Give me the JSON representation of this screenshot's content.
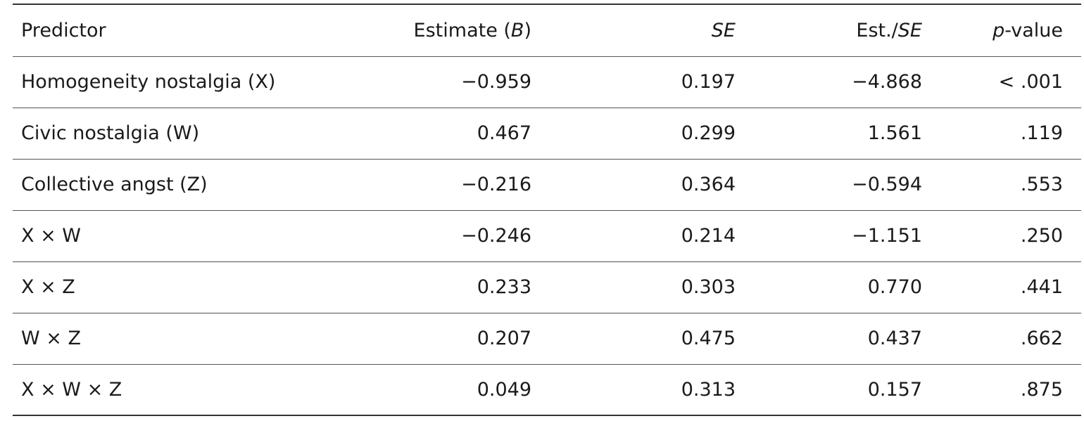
{
  "table": {
    "headers": {
      "predictor": "Predictor",
      "estimate_prefix": "Estimate (",
      "estimate_italic": "B",
      "estimate_suffix": ")",
      "se": "SE",
      "est_se_prefix": "Est./",
      "est_se_italic": "SE",
      "p_italic": "p",
      "p_suffix": "-value"
    },
    "rows": [
      {
        "predictor": "Homogeneity nostalgia (X)",
        "estimate": "−0.959",
        "se": "0.197",
        "est_se": "−4.868",
        "p": "< .001"
      },
      {
        "predictor": "Civic nostalgia (W)",
        "estimate": "0.467",
        "se": "0.299",
        "est_se": "1.561",
        "p": ".119"
      },
      {
        "predictor": "Collective angst (Z)",
        "estimate": "−0.216",
        "se": "0.364",
        "est_se": "−0.594",
        "p": ".553"
      },
      {
        "predictor": "X × W",
        "estimate": "−0.246",
        "se": "0.214",
        "est_se": "−1.151",
        "p": ".250"
      },
      {
        "predictor": "X × Z",
        "estimate": "0.233",
        "se": "0.303",
        "est_se": "0.770",
        "p": ".441"
      },
      {
        "predictor": "W × Z",
        "estimate": "0.207",
        "se": "0.475",
        "est_se": "0.437",
        "p": ".662"
      },
      {
        "predictor": "X × W × Z",
        "estimate": "0.049",
        "se": "0.313",
        "est_se": "0.157",
        "p": ".875"
      }
    ]
  }
}
